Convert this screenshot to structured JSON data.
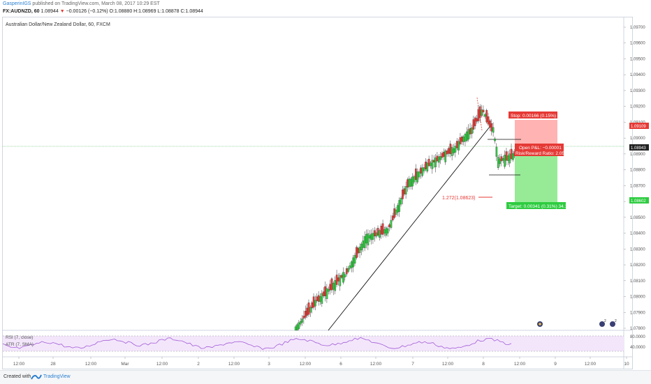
{
  "header": {
    "user": "GasperinIGS",
    "published": "published on TradingView.com, March 08, 2017 10:29 EST",
    "symbol": "FX:AUDNZD, 60",
    "last": "1.08944",
    "change": "−0.00126 (−0.12%)",
    "ohlc": "O:1.08880 H:1.08969 L:1.08878 C:1.08944"
  },
  "chart": {
    "title": "Australian Dollar/New Zealand Dollar, 60, FXCM",
    "price_labels": [
      "1.09700",
      "1.09600",
      "1.09500",
      "1.09400",
      "1.09300",
      "1.09200",
      "1.09100",
      "1.09000",
      "1.08900",
      "1.08800",
      "1.08700",
      "1.08600",
      "1.08500",
      "1.08400",
      "1.08300",
      "1.08200",
      "1.08100",
      "1.08000",
      "1.07900",
      "1.07800"
    ],
    "badges": {
      "stop_price": "1.09109",
      "current_price": "1.08943",
      "target_price": "1.08602"
    },
    "stop_label": "Stop: 0.00166 (0.15%) 16.6",
    "open_pnl": "Open P&L: −0.00001",
    "risk_reward": "Risk/Reward Ratio: 2.05",
    "target_label": "Target: 0.00341 (0.31%) 34.1",
    "fib_label": "1.272(1.08623)",
    "colors": {
      "up": "#2ecc40",
      "down": "#e53935",
      "stop_zone": "#ff9e9e",
      "target_zone": "#8ee88e",
      "price_line": "#3cb44b"
    }
  },
  "indicators": {
    "rsi_label": "RSI (7, close)",
    "atr_label": "ATR (7, SMA)",
    "rsi_levels": [
      "80.0000",
      "40.0000"
    ]
  },
  "time_axis": [
    "12:00",
    "28",
    "12:00",
    "Mar",
    "12:00",
    "2",
    "12:00",
    "3",
    "12:00",
    "6",
    "12:00",
    "7",
    "12:00",
    "8",
    "12:00",
    "9",
    "12:00",
    "10"
  ],
  "footer": {
    "created": "Created with",
    "brand": "TradingView"
  }
}
